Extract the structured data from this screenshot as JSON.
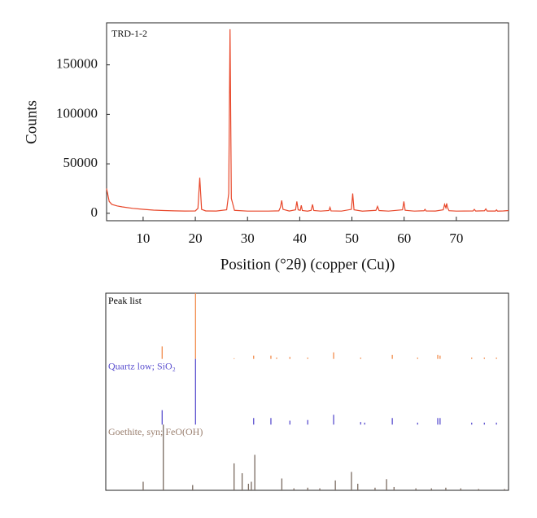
{
  "chart_data": [
    {
      "type": "line",
      "annotation": "TRD-1-2",
      "x_label": "Position (°2θ) (copper (Cu))",
      "y_label": "Counts",
      "xlim": [
        3,
        80
      ],
      "ylim": [
        -7500,
        192500
      ],
      "xticks": [
        10,
        20,
        30,
        40,
        50,
        60,
        70
      ],
      "yticks": [
        0,
        50000,
        100000,
        150000
      ],
      "color": "#e8472a",
      "x": [
        3,
        3.5,
        4,
        5,
        6,
        8,
        10,
        12,
        14,
        16,
        18,
        20,
        20.5,
        20.85,
        21.2,
        22,
        24,
        26,
        26.4,
        26.65,
        26.9,
        27.5,
        30,
        34,
        36,
        36.3,
        36.55,
        36.8,
        38,
        39.2,
        39.45,
        39.7,
        40.1,
        40.3,
        40.5,
        41.5,
        42.2,
        42.45,
        42.7,
        44,
        45.6,
        45.8,
        46,
        48,
        49.9,
        50.15,
        50.4,
        52,
        54.6,
        54.9,
        55.2,
        57,
        59.7,
        59.95,
        60.2,
        62,
        63.8,
        64,
        64.2,
        66,
        67.5,
        67.75,
        68,
        68.15,
        68.3,
        68.6,
        70,
        73.2,
        73.45,
        73.7,
        75.4,
        75.65,
        75.9,
        77.5,
        77.7,
        77.9,
        79,
        80
      ],
      "values": [
        25000,
        12000,
        9000,
        7500,
        6500,
        5000,
        4000,
        3200,
        2800,
        2500,
        2300,
        2400,
        5000,
        36000,
        4000,
        2400,
        2300,
        3500,
        20000,
        186000,
        15000,
        3000,
        2200,
        2200,
        2500,
        6000,
        13000,
        4000,
        2300,
        3500,
        12000,
        3500,
        3000,
        8000,
        2800,
        2200,
        3000,
        9000,
        2800,
        2200,
        2800,
        6000,
        2400,
        2200,
        4000,
        20000,
        3500,
        2200,
        3000,
        7000,
        2800,
        2200,
        3500,
        12000,
        3000,
        2200,
        2600,
        4000,
        2400,
        2300,
        3500,
        9000,
        5500,
        10000,
        6000,
        2600,
        2200,
        2400,
        4000,
        2300,
        2600,
        4500,
        2300,
        2300,
        3500,
        2200,
        2400,
        2800
      ]
    },
    {
      "type": "stick",
      "xlim": [
        11,
        81
      ],
      "ylim": [
        0,
        100
      ],
      "series": [
        {
          "name": "Peak list",
          "color": "#f28c4c",
          "label_color": "#000000",
          "x": [
            20.8,
            26.6,
            33.3,
            36.7,
            39.7,
            40.7,
            43.0,
            46.1,
            50.6,
            55.3,
            60.8,
            65.2,
            68.7,
            69.1,
            74.6,
            76.8,
            78.9
          ],
          "values": [
            19,
            100,
            1,
            5,
            5,
            2,
            3,
            2,
            10,
            2,
            6,
            2,
            6,
            5,
            2,
            2,
            2
          ]
        },
        {
          "name": "Quartz low; SiO₂",
          "color": "#5a4fcf",
          "label_color": "#5a4fcf",
          "x": [
            20.8,
            26.6,
            36.7,
            39.7,
            43.0,
            46.1,
            50.6,
            55.3,
            56.0,
            60.8,
            65.2,
            68.7,
            69.1,
            74.6,
            76.8,
            78.9
          ],
          "values": [
            22,
            100,
            10,
            10,
            6,
            7,
            15,
            4,
            3,
            10,
            3,
            10,
            10,
            3,
            3,
            3
          ]
        },
        {
          "name": "Goethite, syn; FeO(OH)",
          "color": "#7a6a60",
          "label_color": "#9b8070",
          "x": [
            17.5,
            21.0,
            26.1,
            33.3,
            34.7,
            35.8,
            36.3,
            36.9,
            41.6,
            43.7,
            46.1,
            48.2,
            50.9,
            53.7,
            54.8,
            57.8,
            59.8,
            61.1,
            64.9,
            67.6,
            70.1,
            72.7,
            75.8,
            80.3
          ],
          "values": [
            13,
            100,
            8,
            41,
            26,
            10,
            13,
            54,
            18,
            3,
            4,
            3,
            15,
            28,
            10,
            4,
            17,
            5,
            3,
            3,
            4,
            3,
            2,
            2
          ]
        }
      ]
    }
  ]
}
